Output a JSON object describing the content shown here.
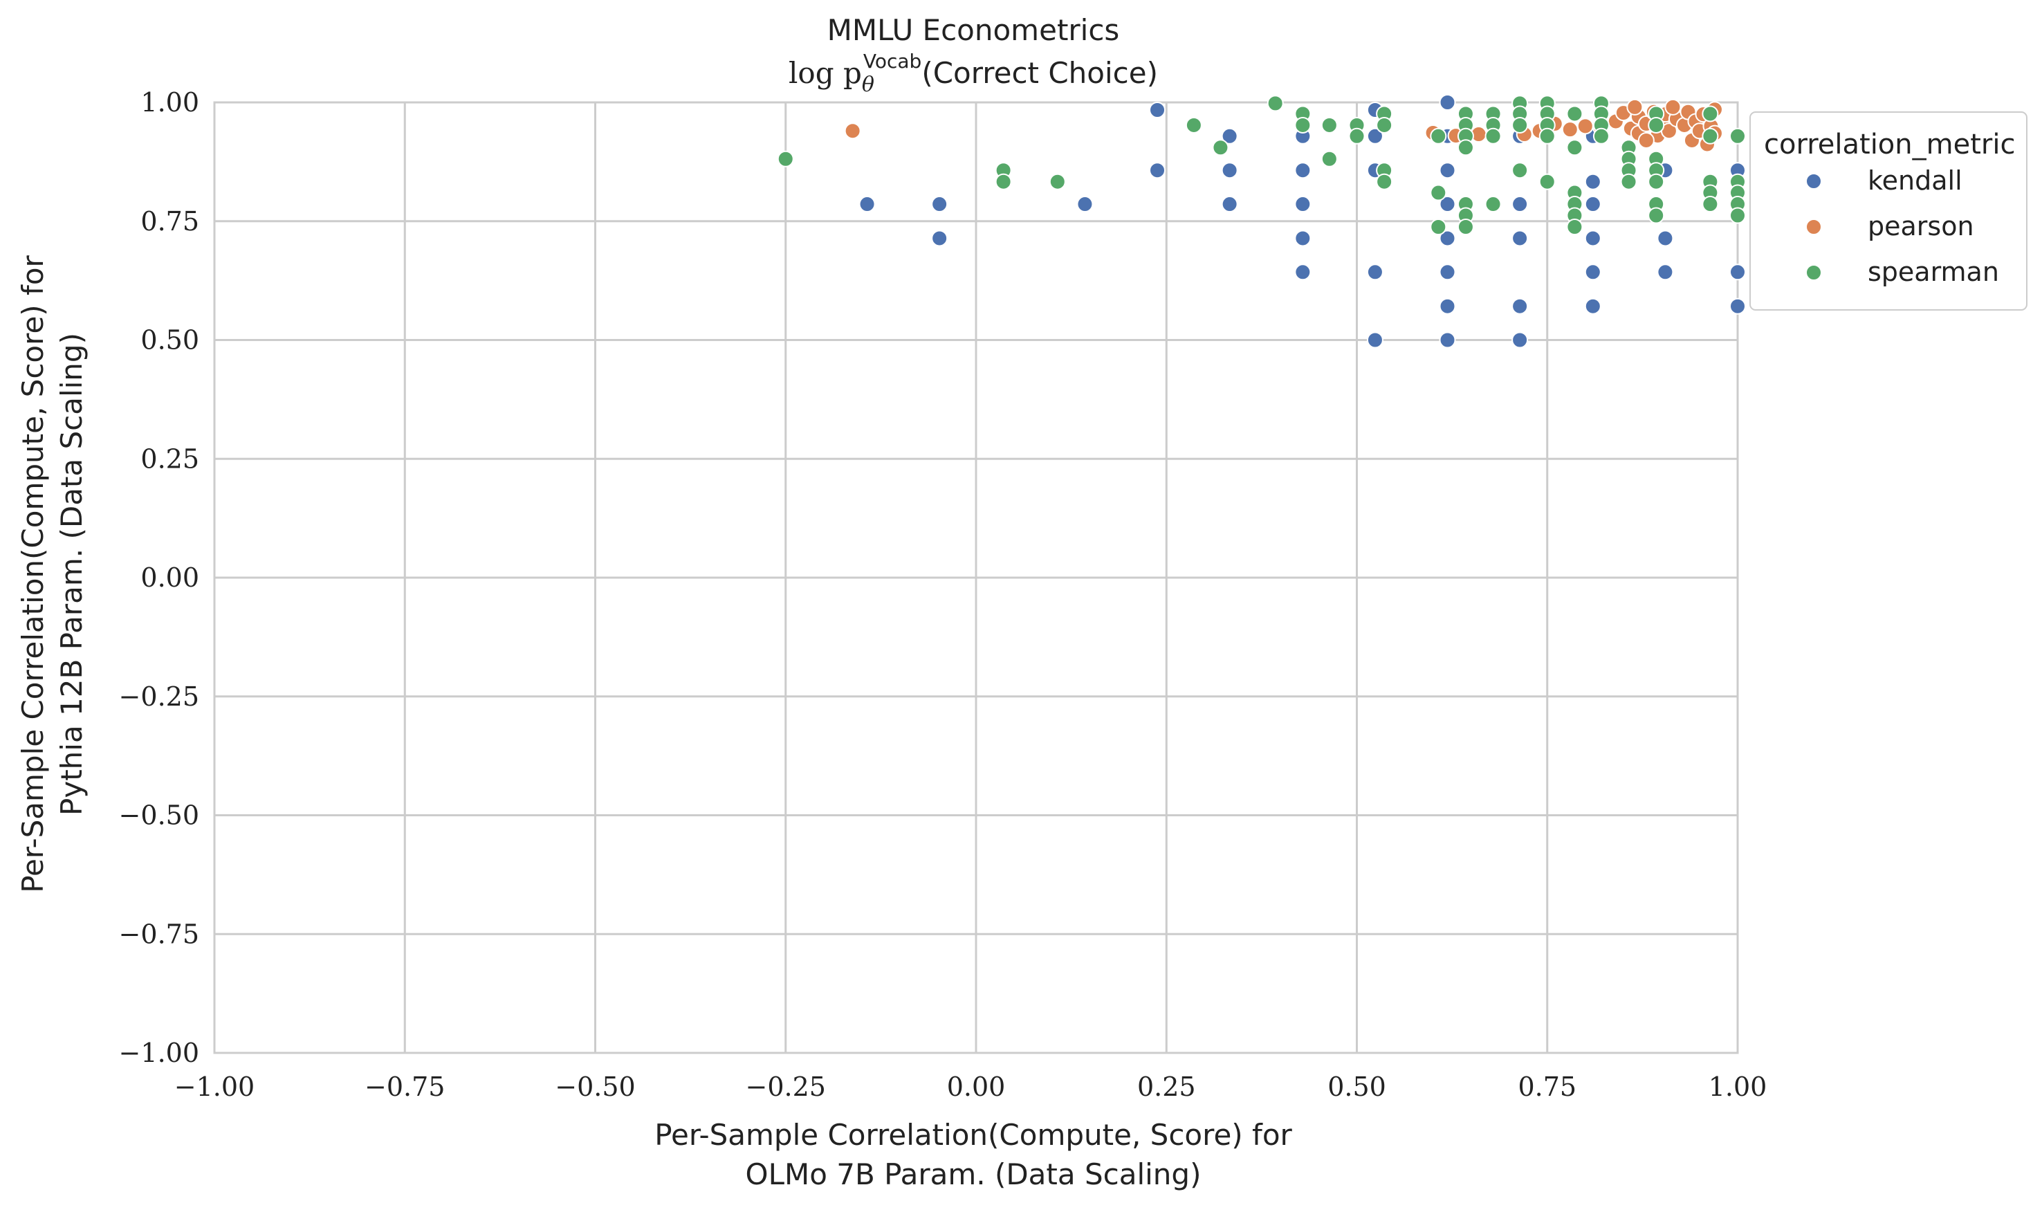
{
  "chart_data": {
    "type": "scatter",
    "title": "MMLU Econometrics",
    "subtitle": {
      "prefix": "log p",
      "sub": "θ",
      "sup": "Vocab",
      "suffix": "(Correct Choice)"
    },
    "xlabel_lines": [
      "Per-Sample Correlation(Compute, Score) for",
      "OLMo 7B Param. (Data Scaling)"
    ],
    "ylabel_lines": [
      "Per-Sample Correlation(Compute, Score) for",
      "Pythia 12B Param. (Data Scaling)"
    ],
    "xlim": [
      -1.0,
      1.0
    ],
    "ylim": [
      -1.0,
      1.0
    ],
    "xticks": [
      "−1.00",
      "−0.75",
      "−0.50",
      "−0.25",
      "0.00",
      "0.25",
      "0.50",
      "0.75",
      "1.00"
    ],
    "yticks": [
      "−1.00",
      "−0.75",
      "−0.50",
      "−0.25",
      "0.00",
      "0.25",
      "0.50",
      "0.75",
      "1.00"
    ],
    "grid": true,
    "legend": {
      "title": "correlation_metric",
      "placement": "outside-right"
    },
    "series": [
      {
        "name": "kendall",
        "color": "#4c72b0",
        "points": [
          [
            -0.143,
            0.786
          ],
          [
            -0.048,
            0.786
          ],
          [
            -0.048,
            0.714
          ],
          [
            0.143,
            0.786
          ],
          [
            0.238,
            0.857
          ],
          [
            0.238,
            0.984
          ],
          [
            0.333,
            0.929
          ],
          [
            0.333,
            0.857
          ],
          [
            0.333,
            0.786
          ],
          [
            0.429,
            0.929
          ],
          [
            0.429,
            0.857
          ],
          [
            0.429,
            0.786
          ],
          [
            0.429,
            0.714
          ],
          [
            0.429,
            0.643
          ],
          [
            0.524,
            0.984
          ],
          [
            0.524,
            0.929
          ],
          [
            0.524,
            0.857
          ],
          [
            0.524,
            0.643
          ],
          [
            0.524,
            0.5
          ],
          [
            0.619,
            1.0
          ],
          [
            0.619,
            0.929
          ],
          [
            0.619,
            0.857
          ],
          [
            0.619,
            0.786
          ],
          [
            0.619,
            0.714
          ],
          [
            0.619,
            0.643
          ],
          [
            0.619,
            0.571
          ],
          [
            0.619,
            0.5
          ],
          [
            0.714,
            0.929
          ],
          [
            0.714,
            0.786
          ],
          [
            0.714,
            0.714
          ],
          [
            0.714,
            0.571
          ],
          [
            0.714,
            0.5
          ],
          [
            0.81,
            0.929
          ],
          [
            0.81,
            0.833
          ],
          [
            0.81,
            0.786
          ],
          [
            0.81,
            0.714
          ],
          [
            0.81,
            0.643
          ],
          [
            0.81,
            0.571
          ],
          [
            0.905,
            0.857
          ],
          [
            0.905,
            0.714
          ],
          [
            0.905,
            0.643
          ],
          [
            1.0,
            0.857
          ],
          [
            1.0,
            0.643
          ],
          [
            1.0,
            0.571
          ]
        ]
      },
      {
        "name": "pearson",
        "color": "#dd8452",
        "points": [
          [
            -0.162,
            0.94
          ],
          [
            0.6,
            0.936
          ],
          [
            0.63,
            0.93
          ],
          [
            0.66,
            0.933
          ],
          [
            0.72,
            0.933
          ],
          [
            0.74,
            0.94
          ],
          [
            0.76,
            0.955
          ],
          [
            0.78,
            0.943
          ],
          [
            0.8,
            0.95
          ],
          [
            0.82,
            0.948
          ],
          [
            0.84,
            0.96
          ],
          [
            0.85,
            0.978
          ],
          [
            0.86,
            0.945
          ],
          [
            0.87,
            0.935
          ],
          [
            0.87,
            0.97
          ],
          [
            0.88,
            0.955
          ],
          [
            0.89,
            0.98
          ],
          [
            0.895,
            0.93
          ],
          [
            0.9,
            0.96
          ],
          [
            0.905,
            0.975
          ],
          [
            0.91,
            0.94
          ],
          [
            0.92,
            0.965
          ],
          [
            0.93,
            0.952
          ],
          [
            0.935,
            0.98
          ],
          [
            0.94,
            0.92
          ],
          [
            0.945,
            0.96
          ],
          [
            0.95,
            0.94
          ],
          [
            0.955,
            0.975
          ],
          [
            0.96,
            0.912
          ],
          [
            0.965,
            0.95
          ],
          [
            0.97,
            0.935
          ],
          [
            0.97,
            0.985
          ],
          [
            0.88,
            0.92
          ],
          [
            0.865,
            0.99
          ],
          [
            0.915,
            0.99
          ]
        ]
      },
      {
        "name": "spearman",
        "color": "#55a868",
        "points": [
          [
            -0.25,
            0.881
          ],
          [
            0.036,
            0.857
          ],
          [
            0.036,
            0.833
          ],
          [
            0.107,
            0.833
          ],
          [
            0.286,
            0.952
          ],
          [
            0.321,
            0.905
          ],
          [
            0.393,
            0.998
          ],
          [
            0.429,
            0.976
          ],
          [
            0.429,
            0.952
          ],
          [
            0.464,
            0.952
          ],
          [
            0.464,
            0.881
          ],
          [
            0.5,
            0.952
          ],
          [
            0.5,
            0.929
          ],
          [
            0.536,
            0.976
          ],
          [
            0.536,
            0.952
          ],
          [
            0.536,
            0.857
          ],
          [
            0.536,
            0.833
          ],
          [
            0.607,
            0.929
          ],
          [
            0.607,
            0.81
          ],
          [
            0.607,
            0.738
          ],
          [
            0.643,
            0.976
          ],
          [
            0.643,
            0.952
          ],
          [
            0.643,
            0.929
          ],
          [
            0.643,
            0.905
          ],
          [
            0.643,
            0.786
          ],
          [
            0.643,
            0.762
          ],
          [
            0.643,
            0.738
          ],
          [
            0.679,
            0.976
          ],
          [
            0.679,
            0.952
          ],
          [
            0.679,
            0.929
          ],
          [
            0.679,
            0.786
          ],
          [
            0.714,
            0.998
          ],
          [
            0.714,
            0.976
          ],
          [
            0.714,
            0.952
          ],
          [
            0.714,
            0.857
          ],
          [
            0.75,
            0.998
          ],
          [
            0.75,
            0.976
          ],
          [
            0.75,
            0.952
          ],
          [
            0.75,
            0.929
          ],
          [
            0.75,
            0.833
          ],
          [
            0.786,
            0.976
          ],
          [
            0.786,
            0.905
          ],
          [
            0.786,
            0.81
          ],
          [
            0.786,
            0.786
          ],
          [
            0.786,
            0.762
          ],
          [
            0.786,
            0.738
          ],
          [
            0.821,
            0.998
          ],
          [
            0.821,
            0.976
          ],
          [
            0.821,
            0.952
          ],
          [
            0.821,
            0.929
          ],
          [
            0.857,
            0.905
          ],
          [
            0.857,
            0.881
          ],
          [
            0.857,
            0.857
          ],
          [
            0.857,
            0.833
          ],
          [
            0.893,
            0.976
          ],
          [
            0.893,
            0.952
          ],
          [
            0.893,
            0.881
          ],
          [
            0.893,
            0.857
          ],
          [
            0.893,
            0.833
          ],
          [
            0.893,
            0.786
          ],
          [
            0.893,
            0.762
          ],
          [
            0.964,
            0.976
          ],
          [
            0.964,
            0.929
          ],
          [
            0.964,
            0.833
          ],
          [
            0.964,
            0.81
          ],
          [
            0.964,
            0.786
          ],
          [
            1.0,
            0.929
          ],
          [
            1.0,
            0.833
          ],
          [
            1.0,
            0.81
          ],
          [
            1.0,
            0.786
          ],
          [
            1.0,
            0.762
          ]
        ]
      }
    ]
  }
}
